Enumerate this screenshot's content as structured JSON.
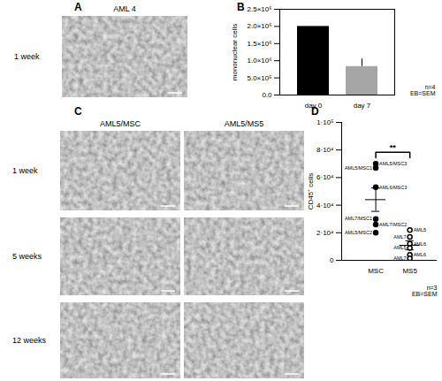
{
  "panels": {
    "A": {
      "panel": "A",
      "title": "AML 4",
      "row_label": "1 week"
    },
    "C": {
      "panel": "C",
      "columns": [
        "AML5/MSC",
        "AML5/MS5"
      ],
      "rows": [
        "1 week",
        "5 weeks",
        "12 weeks"
      ]
    }
  },
  "chart_data": [
    {
      "panel": "B",
      "type": "bar",
      "categories": [
        "day 0",
        "day 7"
      ],
      "values": [
        2000000,
        830000
      ],
      "errors": [
        null,
        220000
      ],
      "colors": [
        "#000000",
        "#a6a6a6"
      ],
      "y_label": "mononuclear cells",
      "ylim": [
        0,
        2500000
      ],
      "yticks": [
        {
          "value": 0,
          "label": "0.0"
        },
        {
          "value": 500000,
          "label": "5.0×10⁵"
        },
        {
          "value": 1000000,
          "label": "1.0×10⁶"
        },
        {
          "value": 1500000,
          "label": "1.5×10⁶"
        },
        {
          "value": 2000000,
          "label": "2.0×10⁶"
        },
        {
          "value": 2500000,
          "label": "2.5×10⁶"
        }
      ],
      "annotations": [
        "n=4",
        "EB=SEM"
      ]
    },
    {
      "panel": "D",
      "type": "scatter",
      "categories": [
        "MSC",
        "MS5"
      ],
      "y_label": "CD45⁺ cells",
      "groups": [
        {
          "category": "MSC",
          "marker": "filled",
          "values": [
            70000,
            67000,
            53000,
            30000,
            26000,
            20000
          ],
          "labels": [
            "AML5/MSC3",
            "AML5/MSC1",
            "AML6/MSC3",
            "AML7/MSC1",
            "AML7/MSC2",
            "AML5/MSC2"
          ],
          "mean": 44000,
          "error": 8500
        },
        {
          "category": "MS5",
          "marker": "open",
          "values": [
            22000,
            17000,
            12000,
            9000,
            4000,
            1500
          ],
          "labels": [
            "AML5",
            "AML7",
            "AML6",
            "AML5",
            "AML6",
            "AML7"
          ],
          "mean": 10900,
          "error": 3300
        }
      ],
      "ylim": [
        0,
        100000
      ],
      "yticks": [
        0,
        {
          "value": 20000,
          "label": "2·10⁴"
        },
        {
          "value": 40000,
          "label": "4·10⁴"
        },
        {
          "value": 60000,
          "label": "6·10⁴"
        },
        {
          "value": 80000,
          "label": "8·10⁴"
        },
        {
          "value": 100000,
          "label": "1·10⁵"
        }
      ],
      "significance": "**",
      "annotations": [
        "n=3",
        "EB=SEM"
      ]
    }
  ]
}
